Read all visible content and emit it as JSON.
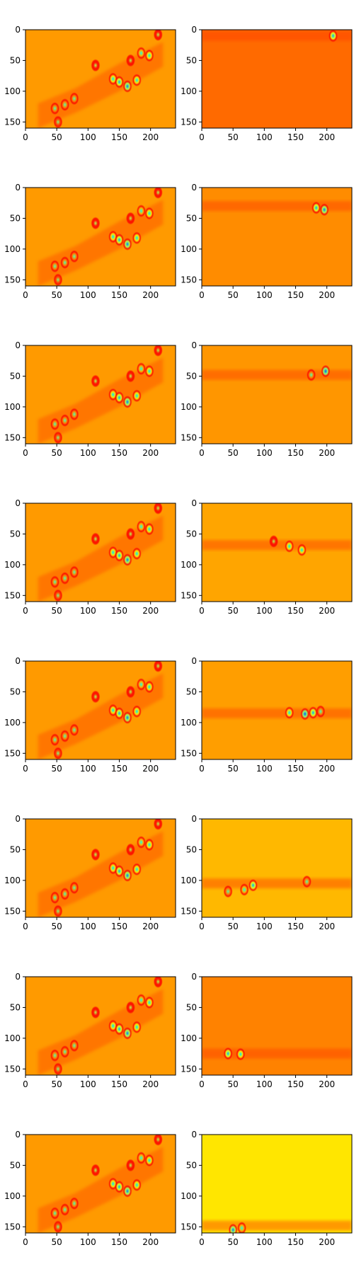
{
  "chart_data": {
    "type": "heatmap",
    "layout": {
      "rows": 8,
      "cols": 2
    },
    "colormap": "jet",
    "x_range": [
      0,
      240
    ],
    "y_range": [
      160,
      0
    ],
    "xticks": [
      0,
      50,
      100,
      150,
      200
    ],
    "yticks": [
      0,
      50,
      100,
      150
    ],
    "grid": false,
    "left_background": "#ff9a00",
    "left_blobs": [
      {
        "x": 47,
        "y": 128,
        "v": 0.45
      },
      {
        "x": 63,
        "y": 122,
        "v": 0.45
      },
      {
        "x": 78,
        "y": 112,
        "v": 0.45
      },
      {
        "x": 52,
        "y": 150,
        "v": 0.5
      },
      {
        "x": 112,
        "y": 58,
        "v": 0.55
      },
      {
        "x": 140,
        "y": 80,
        "v": 0.35
      },
      {
        "x": 150,
        "y": 85,
        "v": 0.3
      },
      {
        "x": 163,
        "y": 92,
        "v": 0.25
      },
      {
        "x": 178,
        "y": 82,
        "v": 0.35
      },
      {
        "x": 168,
        "y": 50,
        "v": 0.55
      },
      {
        "x": 185,
        "y": 38,
        "v": 0.4
      },
      {
        "x": 198,
        "y": 42,
        "v": 0.35
      },
      {
        "x": 212,
        "y": 8,
        "v": 0.55
      }
    ],
    "panels_right": [
      {
        "row": 1,
        "background": "#ff6a00",
        "band_y": 10,
        "blobs": [
          {
            "x": 210,
            "y": 10,
            "v": 0.3
          }
        ]
      },
      {
        "row": 2,
        "background": "#ff8c00",
        "band_y": 30,
        "blobs": [
          {
            "x": 183,
            "y": 33,
            "v": 0.3
          },
          {
            "x": 196,
            "y": 36,
            "v": 0.25
          }
        ]
      },
      {
        "row": 3,
        "background": "#ff9600",
        "band_y": 48,
        "blobs": [
          {
            "x": 198,
            "y": 42,
            "v": 0.22
          },
          {
            "x": 175,
            "y": 48,
            "v": 0.45
          }
        ]
      },
      {
        "row": 4,
        "background": "#ffa500",
        "band_y": 68,
        "blobs": [
          {
            "x": 140,
            "y": 70,
            "v": 0.35
          },
          {
            "x": 160,
            "y": 76,
            "v": 0.35
          },
          {
            "x": 115,
            "y": 62,
            "v": 0.55
          }
        ]
      },
      {
        "row": 5,
        "background": "#ff9e00",
        "band_y": 85,
        "blobs": [
          {
            "x": 140,
            "y": 84,
            "v": 0.35
          },
          {
            "x": 165,
            "y": 86,
            "v": 0.22
          },
          {
            "x": 178,
            "y": 84,
            "v": 0.3
          },
          {
            "x": 190,
            "y": 82,
            "v": 0.45
          }
        ]
      },
      {
        "row": 6,
        "background": "#ffb800",
        "band_y": 105,
        "blobs": [
          {
            "x": 82,
            "y": 108,
            "v": 0.3
          },
          {
            "x": 68,
            "y": 115,
            "v": 0.4
          },
          {
            "x": 42,
            "y": 118,
            "v": 0.45
          },
          {
            "x": 168,
            "y": 102,
            "v": 0.45
          }
        ]
      },
      {
        "row": 7,
        "background": "#ff8200",
        "band_y": 125,
        "blobs": [
          {
            "x": 42,
            "y": 125,
            "v": 0.3
          },
          {
            "x": 62,
            "y": 126,
            "v": 0.35
          }
        ]
      },
      {
        "row": 8,
        "background": "#ffe600",
        "band_y": 148,
        "blobs": [
          {
            "x": 50,
            "y": 155,
            "v": 0.25
          },
          {
            "x": 64,
            "y": 152,
            "v": 0.4
          }
        ]
      }
    ]
  }
}
